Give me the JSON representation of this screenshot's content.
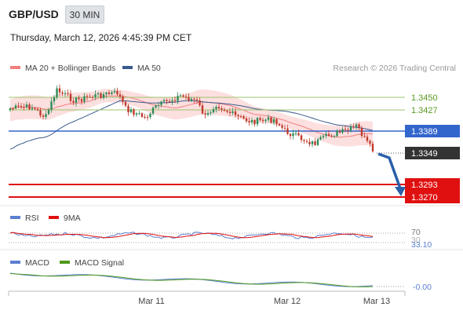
{
  "header": {
    "symbol": "GBP/USD",
    "timeframe": "30 MIN",
    "datetime": "Thursday, March 12, 2026 4:45:39 PM CET"
  },
  "legend": {
    "ma20": {
      "label": "MA 20 + Bollinger Bands",
      "color": "#f07f7f"
    },
    "ma50": {
      "label": "MA 50",
      "color": "#3a5a8c"
    },
    "rsi": {
      "label": "RSI",
      "color": "#5b7fd0"
    },
    "rsi_ma": {
      "label": "9MA",
      "color": "#e01010"
    },
    "macd": {
      "label": "MACD",
      "color": "#5b7fd0"
    },
    "macd_signal": {
      "label": "MACD Signal",
      "color": "#4f9a1e"
    }
  },
  "watermark": "Research © 2026 Trading Central",
  "colors": {
    "resistance": "#7fb04a",
    "pivot": "#3366cc",
    "support": "#e01010",
    "current": "#333333",
    "arrow": "#2a5fa8",
    "candle_up": "#2e8b57",
    "candle_down": "#c0392b",
    "band": "#fbd4d4"
  },
  "chart_data": [
    {
      "type": "candlestick",
      "ylim": [
        1.3255,
        1.35
      ],
      "xaxis_labels": [
        "Mar 11",
        "Mar 12",
        "Mar 13"
      ],
      "levels": [
        {
          "name": "resistance-2",
          "value": "1.3450",
          "kind": "resistance"
        },
        {
          "name": "resistance-1",
          "value": "1.3427",
          "kind": "resistance"
        },
        {
          "name": "pivot",
          "value": "1.3389",
          "kind": "pivot"
        },
        {
          "name": "current-price",
          "value": "1.3349",
          "kind": "current"
        },
        {
          "name": "support-1",
          "value": "1.3293",
          "kind": "support"
        },
        {
          "name": "support-2",
          "value": "1.3270",
          "kind": "support"
        }
      ],
      "forecast": {
        "from": 1.3349,
        "to": 1.3275
      }
    },
    {
      "type": "line",
      "indicator": "RSI",
      "ylim": [
        20,
        80
      ],
      "levels": [
        "70",
        "30"
      ],
      "last_value": "33.10"
    },
    {
      "type": "line",
      "indicator": "MACD",
      "last_value": "-0.00"
    }
  ]
}
